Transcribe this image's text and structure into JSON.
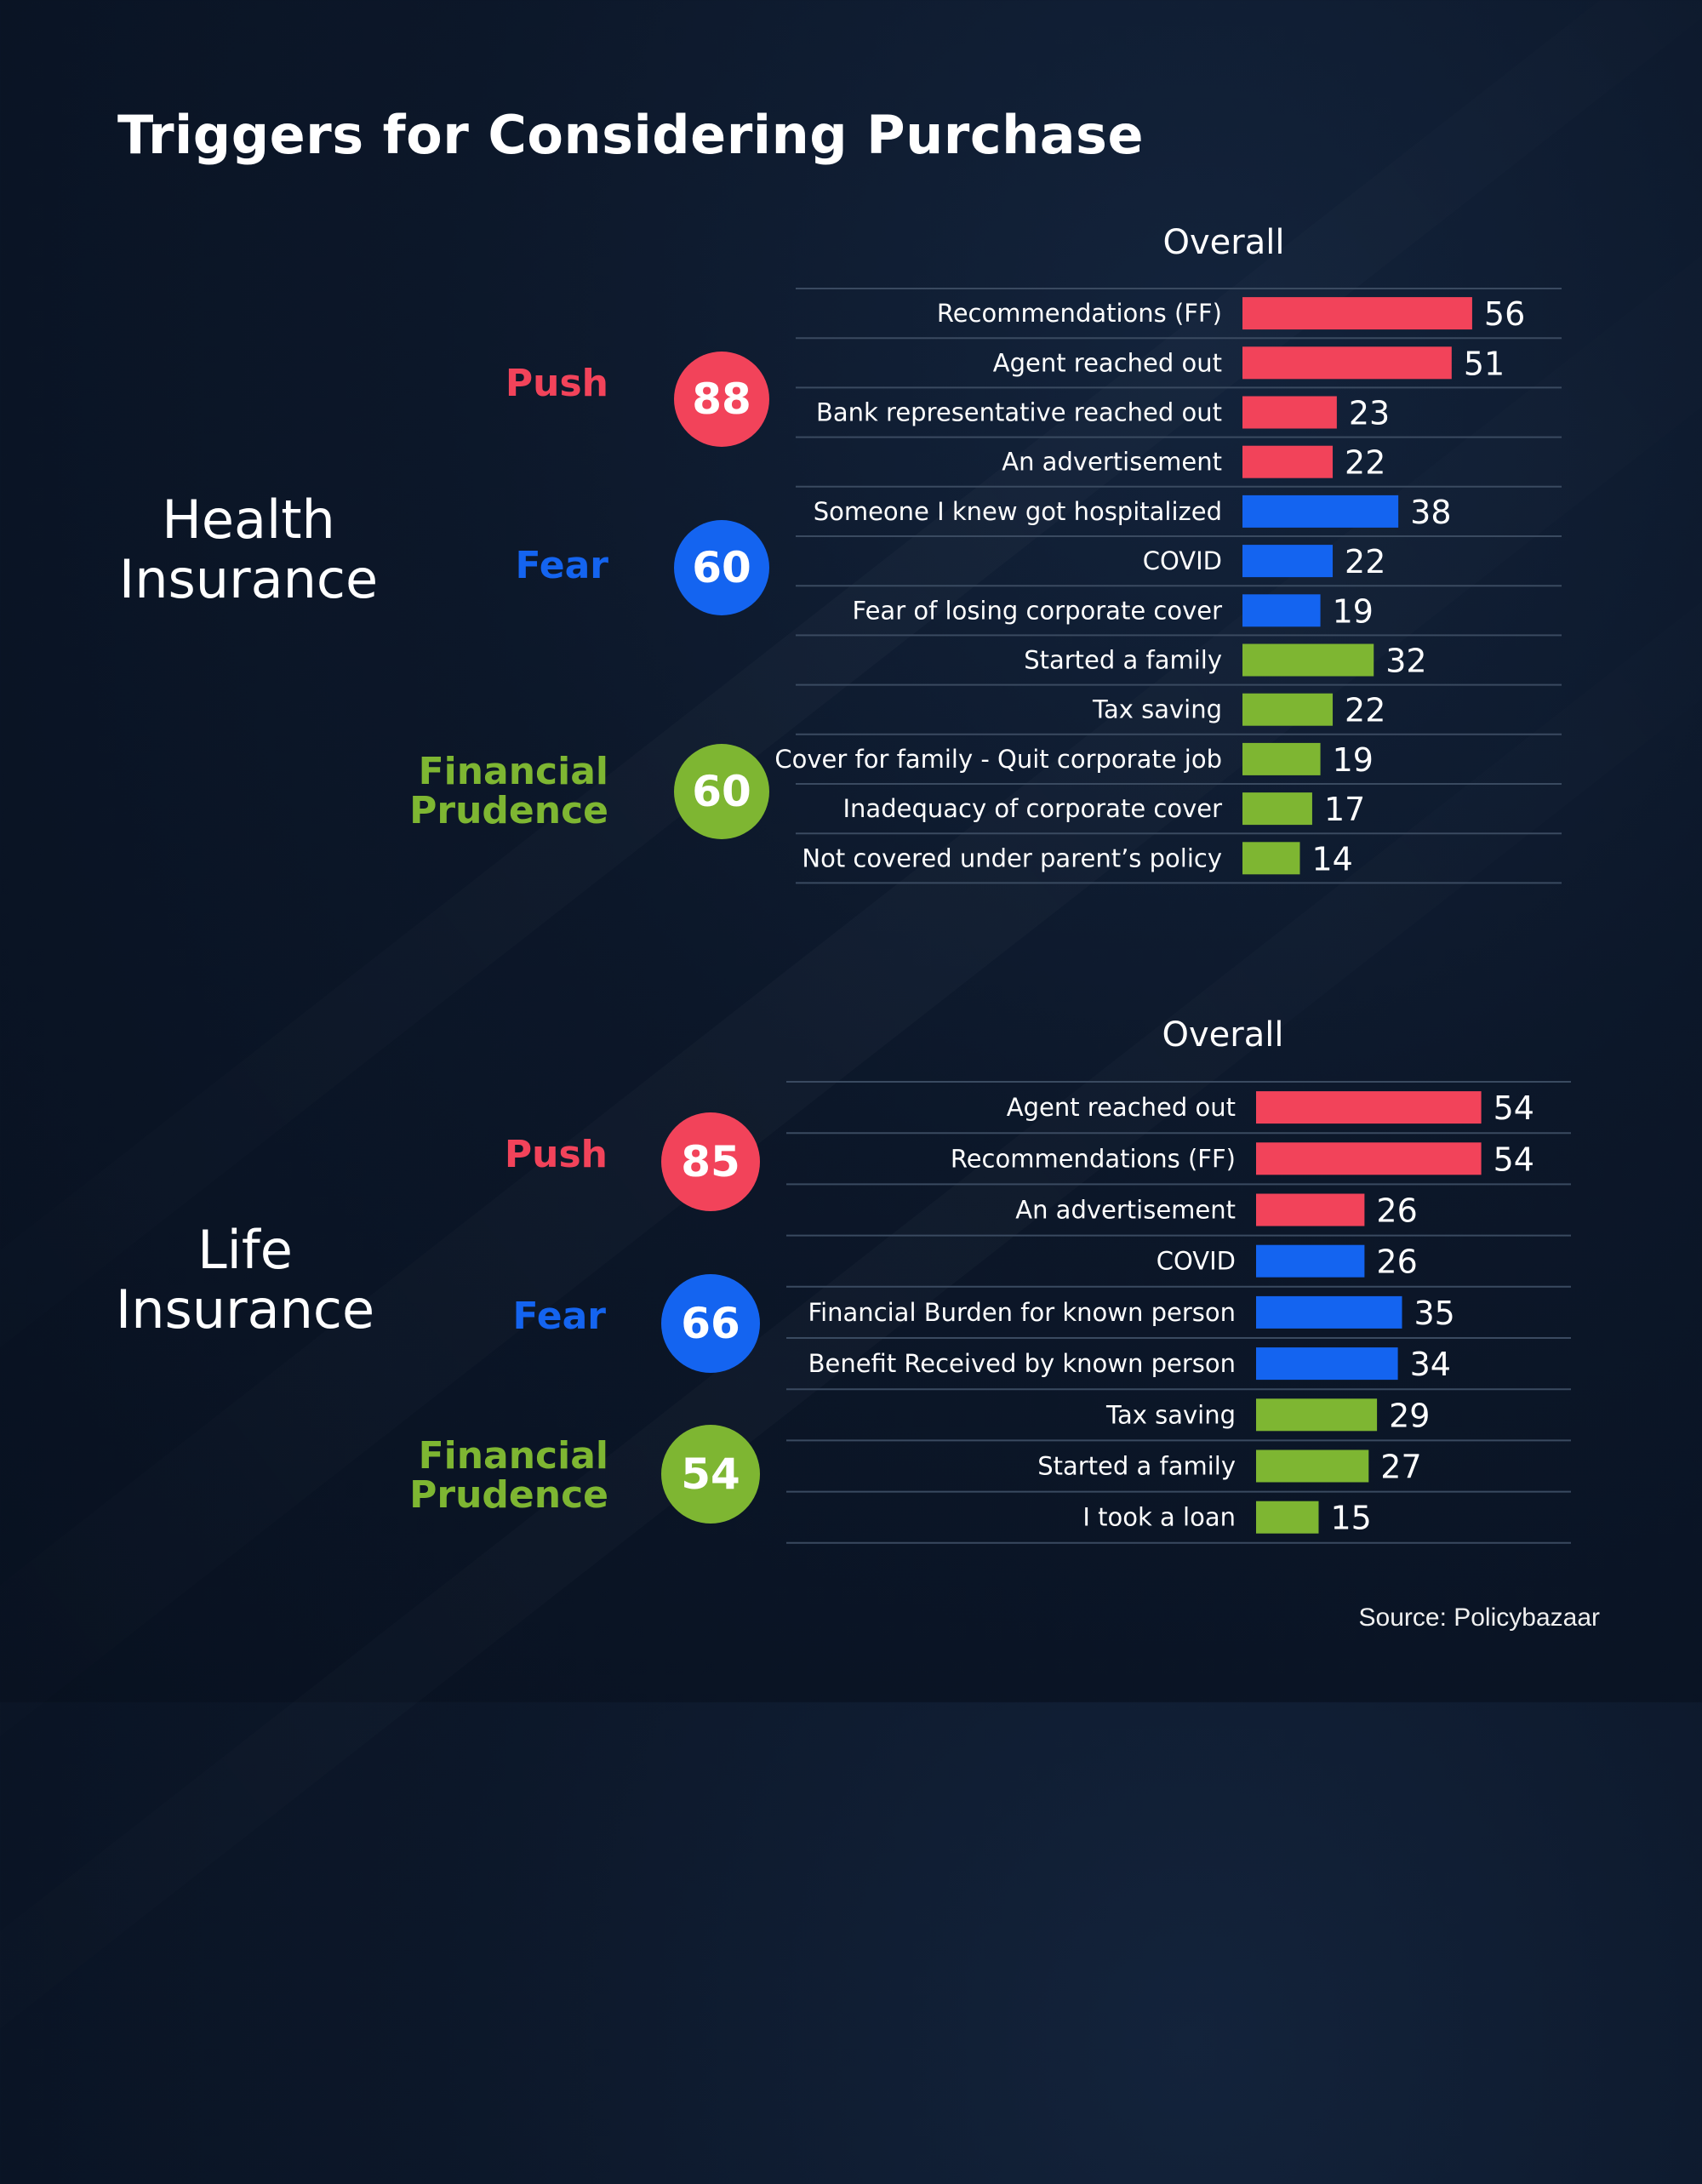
{
  "title": "Triggers for Considering Purchase",
  "source": "Source: Policybazaar",
  "colors": {
    "push": "#f2435a",
    "fear": "#1464f0",
    "prudence": "#7eb632",
    "text": "#ffffff"
  },
  "sections": [
    {
      "label_line1": "Health",
      "label_line2": "Insurance",
      "overall_label": "Overall",
      "categories": [
        {
          "label": "Push",
          "value": "88",
          "color_key": "push"
        },
        {
          "label": "Fear",
          "value": "60",
          "color_key": "fear"
        },
        {
          "label_line1": "Financial",
          "label_line2": "Prudence",
          "value": "60",
          "color_key": "prudence"
        }
      ]
    },
    {
      "label_line1": "Life",
      "label_line2": "Insurance",
      "overall_label": "Overall",
      "categories": [
        {
          "label": "Push",
          "value": "85",
          "color_key": "push"
        },
        {
          "label": "Fear",
          "value": "66",
          "color_key": "fear"
        },
        {
          "label_line1": "Financial",
          "label_line2": "Prudence",
          "value": "54",
          "color_key": "prudence"
        }
      ]
    }
  ],
  "chart_data": [
    {
      "type": "bar",
      "title": "Overall",
      "orientation": "horizontal",
      "categories": [
        "Recommendations (FF)",
        "Agent reached out",
        "Bank representative reached out",
        "An advertisement",
        "Someone I knew got hospitalized",
        "COVID",
        "Fear of losing corporate cover",
        "Started a family",
        "Tax saving",
        "Cover for family - Quit corporate job",
        "Inadequacy of corporate cover",
        "Not covered under parent’s policy"
      ],
      "values": [
        56,
        51,
        23,
        22,
        38,
        22,
        19,
        32,
        22,
        19,
        17,
        14
      ],
      "groups": [
        "push",
        "push",
        "push",
        "push",
        "fear",
        "fear",
        "fear",
        "prudence",
        "prudence",
        "prudence",
        "prudence",
        "prudence"
      ],
      "grid": true
    },
    {
      "type": "bar",
      "title": "Overall",
      "orientation": "horizontal",
      "categories": [
        "Agent reached out",
        "Recommendations (FF)",
        "An advertisement",
        "COVID",
        "Financial Burden for known person",
        "Benefit Received by known person",
        "Tax saving",
        "Started a family",
        "I took a loan"
      ],
      "values": [
        54,
        54,
        26,
        26,
        35,
        34,
        29,
        27,
        15
      ],
      "groups": [
        "push",
        "push",
        "push",
        "fear",
        "fear",
        "fear",
        "prudence",
        "prudence",
        "prudence"
      ],
      "grid": true
    }
  ]
}
